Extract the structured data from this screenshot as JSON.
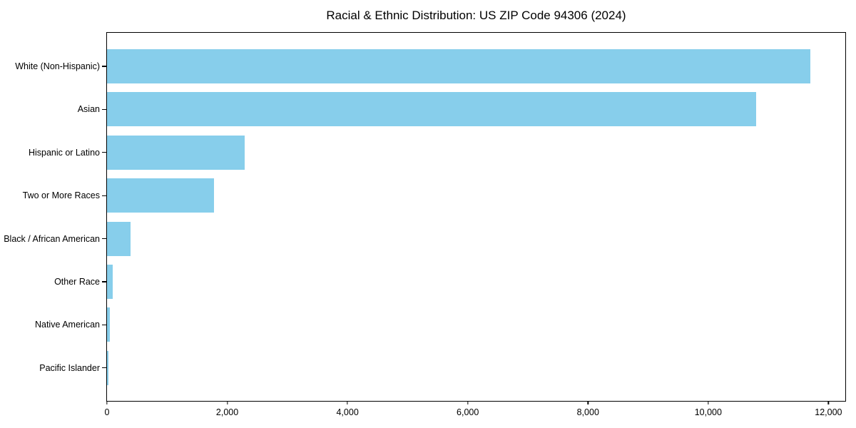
{
  "chart_data": {
    "type": "bar",
    "orientation": "horizontal",
    "title": "Racial & Ethnic Distribution: US ZIP Code 94306 (2024)",
    "categories": [
      "White (Non-Hispanic)",
      "Asian",
      "Hispanic or Latino",
      "Two or More Races",
      "Black / African American",
      "Other Race",
      "Native American",
      "Pacific Islander"
    ],
    "values": [
      11700,
      10800,
      2290,
      1780,
      390,
      95,
      45,
      25
    ],
    "xlabel": "",
    "ylabel": "",
    "xlim": [
      0,
      12280
    ],
    "xticks": [
      {
        "value": 0,
        "label": "0"
      },
      {
        "value": 2000,
        "label": "2,000"
      },
      {
        "value": 4000,
        "label": "4,000"
      },
      {
        "value": 6000,
        "label": "6,000"
      },
      {
        "value": 8000,
        "label": "8,000"
      },
      {
        "value": 10000,
        "label": "10,000"
      },
      {
        "value": 12000,
        "label": "12,000"
      }
    ],
    "bar_color": "#87CEEB",
    "frame_color": "#000000",
    "grid": false,
    "legend": null
  }
}
